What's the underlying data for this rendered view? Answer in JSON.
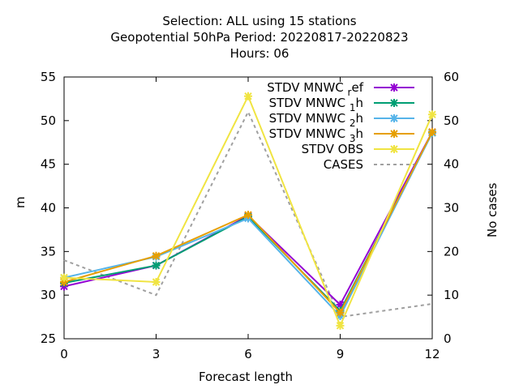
{
  "chart_data": {
    "type": "line",
    "title_lines": [
      "Selection: ALL using    15 stations",
      "Geopotential 50hPa   Period: 20220817-20220823",
      "Hours:  06"
    ],
    "xlabel": "Forecast length",
    "ylabel": "m",
    "y2label": "No cases",
    "x": [
      0,
      3,
      6,
      9,
      12
    ],
    "xlim": [
      0,
      12
    ],
    "ylim": [
      25,
      55
    ],
    "y2lim": [
      0,
      60
    ],
    "xticks": [
      "0",
      "3",
      "6",
      "9",
      "12"
    ],
    "yticks": [
      "25",
      "30",
      "35",
      "40",
      "45",
      "50",
      "55"
    ],
    "y2ticks": [
      "0",
      "10",
      "20",
      "30",
      "40",
      "50",
      "60"
    ],
    "legend_position": "top-right",
    "series": [
      {
        "name": "STDV MNWC_ref",
        "color": "#9400d3",
        "values": [
          31.0,
          33.4,
          39.1,
          28.9,
          48.7
        ]
      },
      {
        "name": "STDV MNWC_1h",
        "color": "#009e73",
        "values": [
          31.4,
          33.4,
          39.0,
          28.2,
          48.6
        ]
      },
      {
        "name": "STDV MNWC_2h",
        "color": "#56b4e9",
        "values": [
          32.0,
          34.4,
          38.8,
          27.6,
          48.6
        ]
      },
      {
        "name": "STDV MNWC_3h",
        "color": "#e69f00",
        "values": [
          31.5,
          34.5,
          39.2,
          28.0,
          48.7
        ]
      },
      {
        "name": "STDV OBS",
        "color": "#f0e442",
        "values": [
          32.0,
          31.5,
          52.8,
          26.5,
          50.7
        ]
      }
    ],
    "cases": {
      "name": "CASES",
      "color": "#a0a0a0",
      "values": [
        18,
        10,
        52,
        5,
        8
      ]
    }
  }
}
